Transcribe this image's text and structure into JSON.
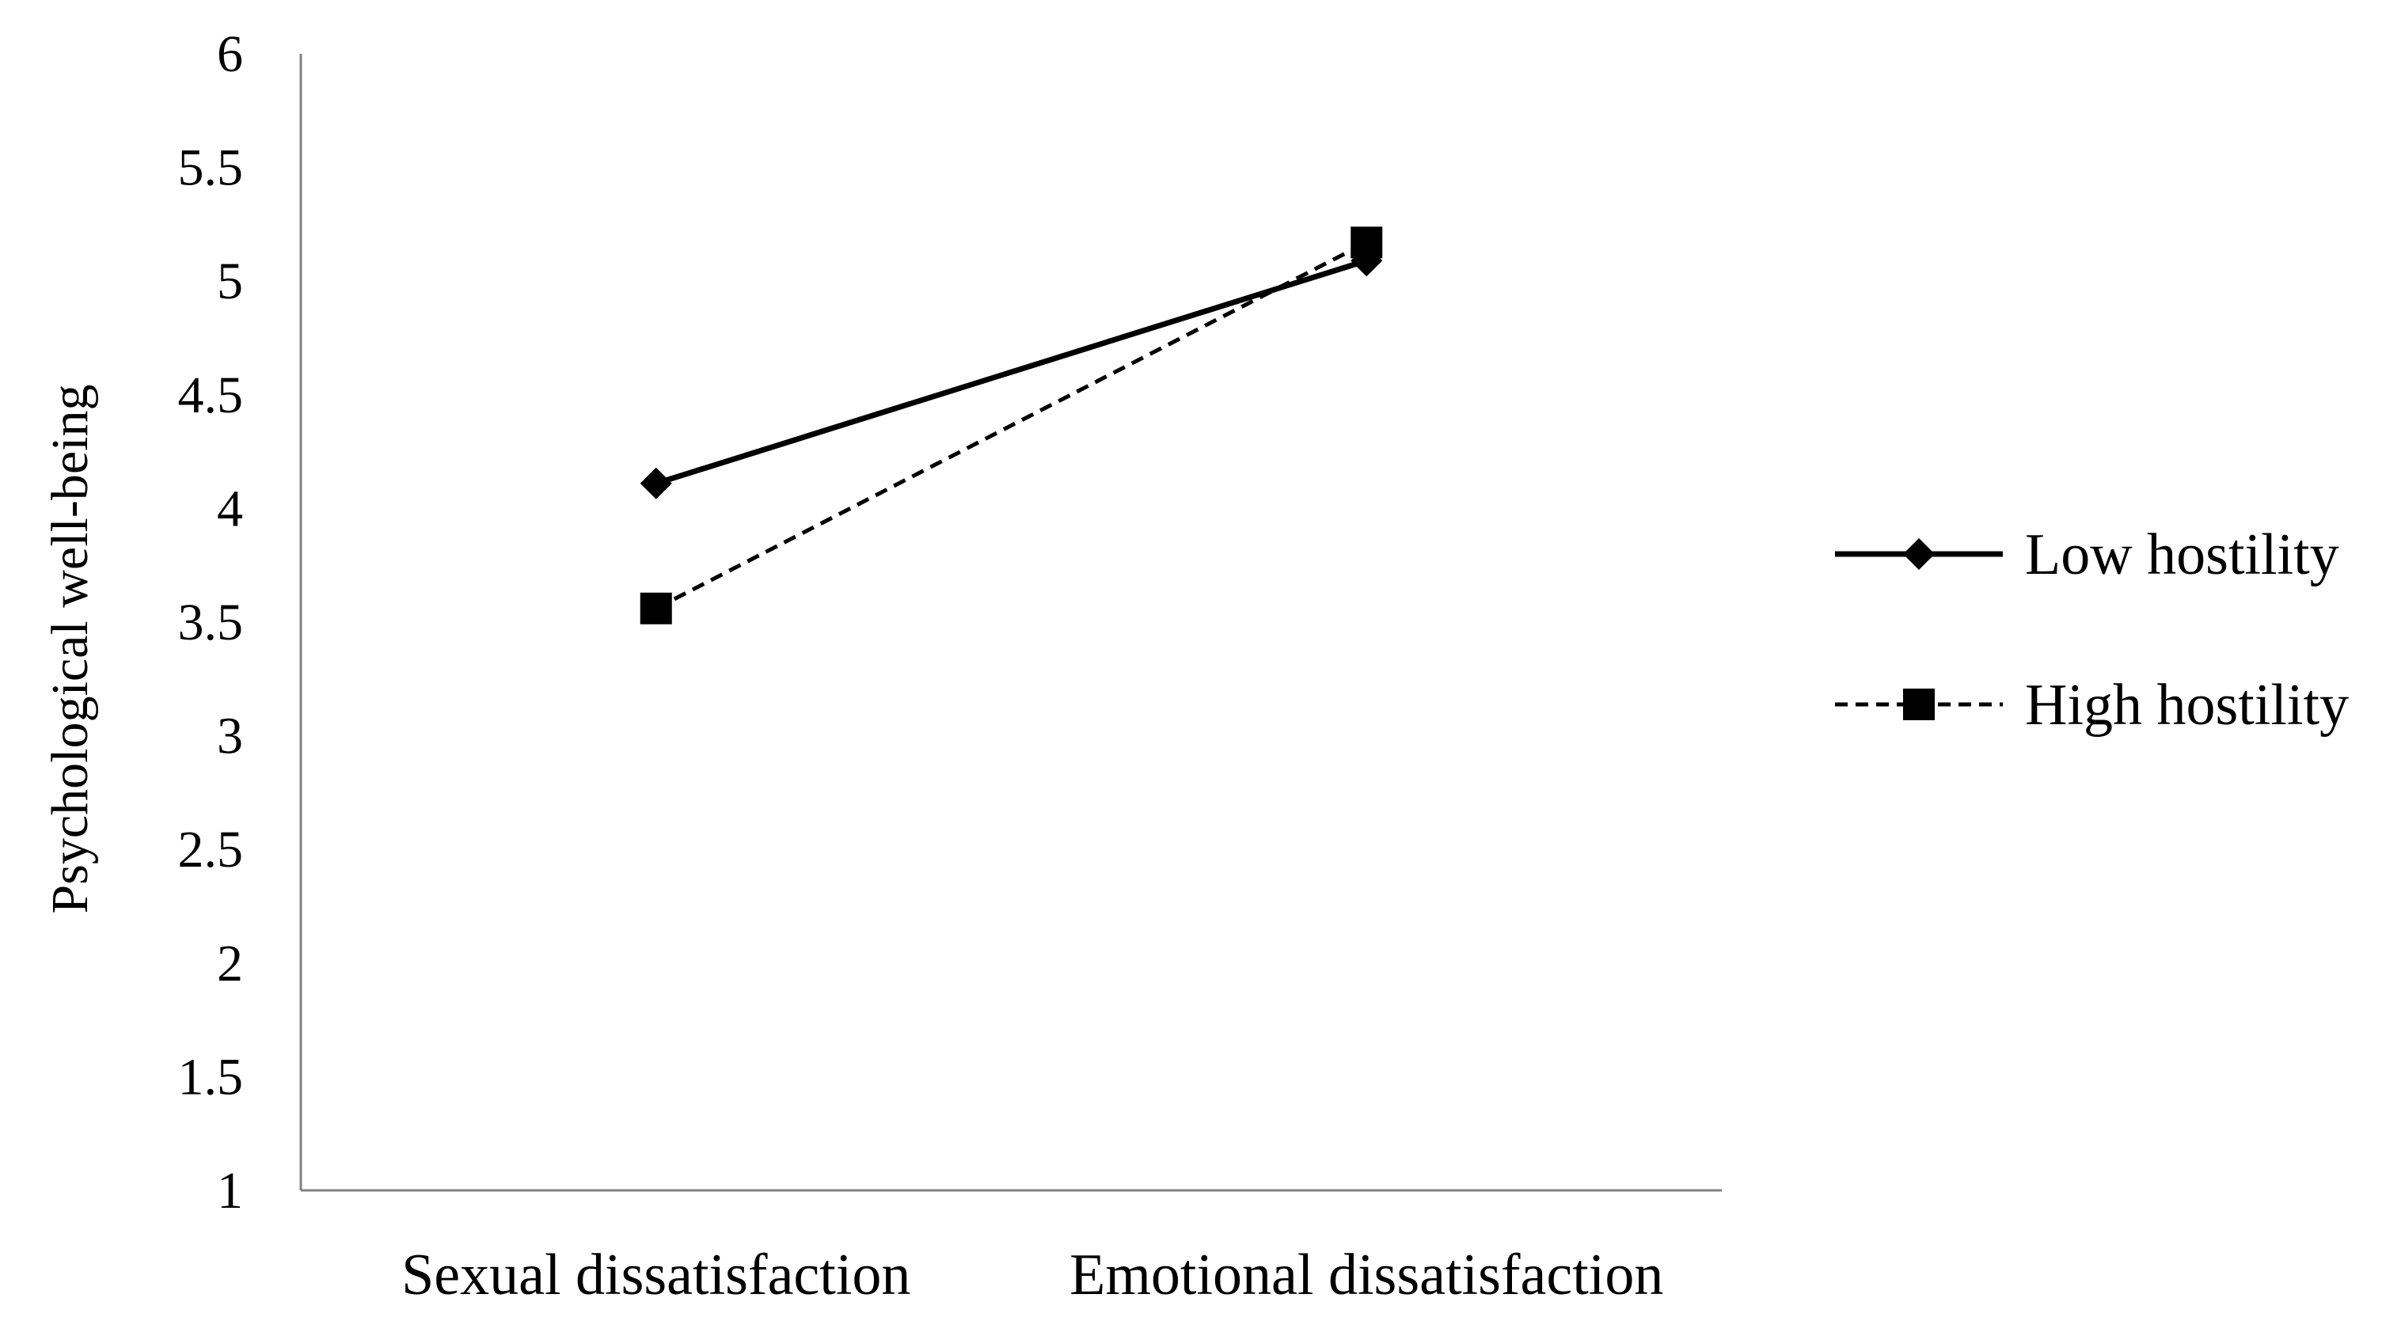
{
  "chart_data": {
    "type": "line",
    "title": "",
    "xlabel": "",
    "ylabel": "Psychological well-being",
    "categories": [
      "Sexual dissatisfaction",
      "Emotional dissatisfaction"
    ],
    "ylim": [
      1,
      6
    ],
    "yticks": [
      "1",
      "1.5",
      "2",
      "2.5",
      "3",
      "3.5",
      "4",
      "4.5",
      "5",
      "5.5",
      "6"
    ],
    "grid": false,
    "legend_position": "right",
    "series": [
      {
        "name": "Low hostility",
        "values": [
          4.11,
          5.09
        ],
        "marker": "diamond",
        "line_style": "solid",
        "color": "#000000"
      },
      {
        "name": "High hostility",
        "values": [
          3.56,
          5.17
        ],
        "marker": "square",
        "line_style": "dashed",
        "color": "#000000"
      }
    ]
  }
}
